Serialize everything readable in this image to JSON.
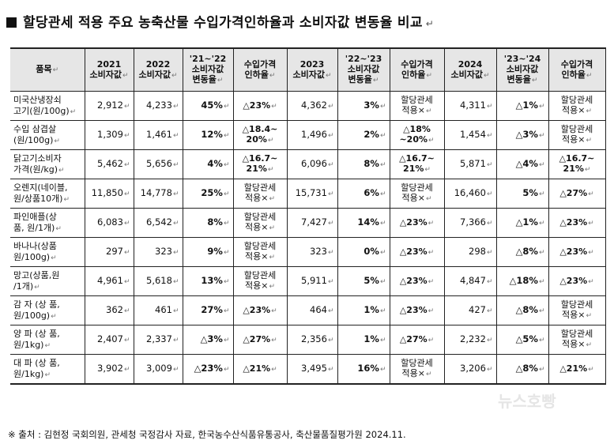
{
  "title": "할당관세 적용 주요 농축산물 수입가격인하율과 소비자값 변동율 비교",
  "headers": [
    "품목",
    "2021\n소비자값",
    "2022\n소비자값",
    "'21~'22\n소비자값\n변동율",
    "수입가격\n인하율",
    "2023\n소비자값",
    "'22~'23\n소비자값\n변동율",
    "수입가격\n인하율",
    "2024\n소비자값",
    "'23~'24\n소비자값\n변동율",
    "수입가격\n인하율"
  ],
  "rows": [
    [
      "미국산냉장쇠\n고기(원/100g)",
      "2,912",
      "4,233",
      "45%",
      "△23%",
      "4,362",
      "3%",
      "할당관세\n적용×",
      "4,311",
      "△1%",
      "할당관세\n적용×"
    ],
    [
      "수입 삼겹살\n(원/100g)",
      "1,309",
      "1,461",
      "12%",
      "△18.4~\n20%",
      "1,496",
      "2%",
      "△18%\n~20%",
      "1,454",
      "△3%",
      "할당관세\n적용×"
    ],
    [
      "닭고기소비자\n가격(원/kg)",
      "5,462",
      "5,656",
      "4%",
      "△16.7~\n21%",
      "6,096",
      "8%",
      "△16.7~\n21%",
      "5,871",
      "△4%",
      "△16.7~\n21%"
    ],
    [
      "오렌지(네이블,\n원/상품10개)",
      "11,850",
      "14,778",
      "25%",
      "할당관세\n적용×",
      "15,731",
      "6%",
      "할당관세\n적용×",
      "16,460",
      "5%",
      "△27%"
    ],
    [
      "파인애플(상\n품, 원/1개)",
      "6,083",
      "6,542",
      "8%",
      "할당관세\n적용×",
      "7,427",
      "14%",
      "△23%",
      "7,366",
      "△1%",
      "△23%"
    ],
    [
      "바나나(상품\n원/100g)",
      "297",
      "323",
      "9%",
      "할당관세\n적용×",
      "323",
      "0%",
      "△23%",
      "298",
      "△8%",
      "△23%"
    ],
    [
      "망고(상품,원\n/1개)",
      "4,961",
      "5,618",
      "13%",
      "할당관세\n적용×",
      "5,911",
      "5%",
      "△23%",
      "4,847",
      "△18%",
      "△23%"
    ],
    [
      "감 자 (상 품,\n원/100g)",
      "362",
      "461",
      "27%",
      "△23%",
      "464",
      "1%",
      "△23%",
      "427",
      "△8%",
      "할당관세\n적용×"
    ],
    [
      "양 파 (상 품,\n원/1kg)",
      "2,407",
      "2,337",
      "△3%",
      "△27%",
      "2,356",
      "1%",
      "△27%",
      "2,232",
      "△5%",
      "할당관세\n적용×"
    ],
    [
      "대 파 (상 품,\n원/1kg)",
      "3,902",
      "3,009",
      "△23%",
      "△21%",
      "3,495",
      "16%",
      "할당관세\n적용×",
      "3,206",
      "△8%",
      "△21%"
    ]
  ],
  "footnote": "※ 출처 : 김현정 국회의원, 관세청 국정감사 자료, 한국농수산식품유통공사, 축산물품질평가원 2024.11.",
  "watermark": "뉴스호빵"
}
